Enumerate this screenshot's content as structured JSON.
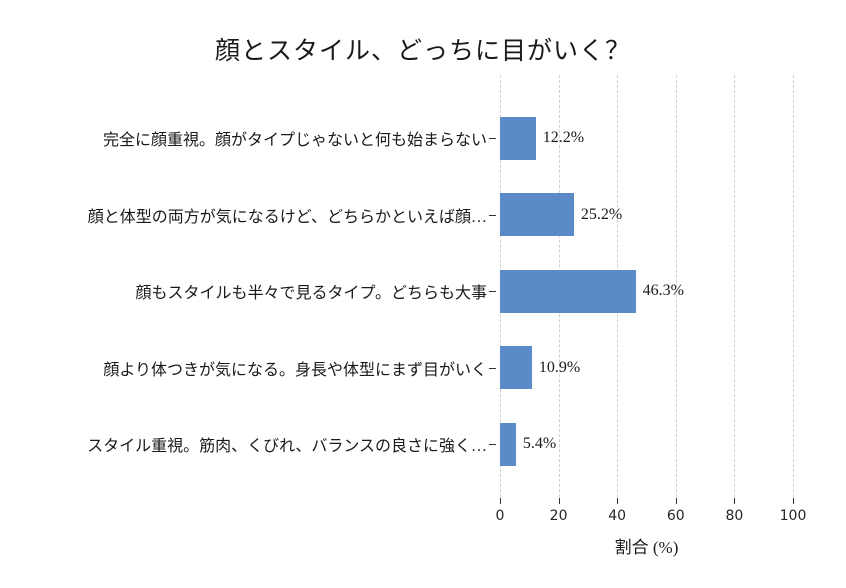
{
  "title": "顔とスタイル、どっちに目がいく？",
  "chart_data": {
    "type": "bar",
    "orientation": "horizontal",
    "title": "顔とスタイル、どっちに目がいく？",
    "categories": [
      "完全に顔重視。顔がタイプじゃないと何も始まらない",
      "顔と体型の両方が気になるけど、どちらかといえば顔…",
      "顔もスタイルも半々で見るタイプ。どちらも大事",
      "顔より体つきが気になる。身長や体型にまず目がいく",
      "スタイル重視。筋肉、くびれ、バランスの良さに強く…"
    ],
    "values": [
      12.2,
      25.2,
      46.3,
      10.9,
      5.4
    ],
    "value_labels": [
      "12.2%",
      "25.2%",
      "46.3%",
      "10.9%",
      "5.4%"
    ],
    "xlabel": "割合 (%)",
    "ylabel": "",
    "xticks": [
      0,
      20,
      40,
      60,
      80,
      100
    ],
    "xlim": [
      0,
      100
    ],
    "bar_color": "#5b8ac8",
    "gridline_color": "#cfcfcf",
    "grid": "vertical-dashed",
    "legend": "none"
  }
}
